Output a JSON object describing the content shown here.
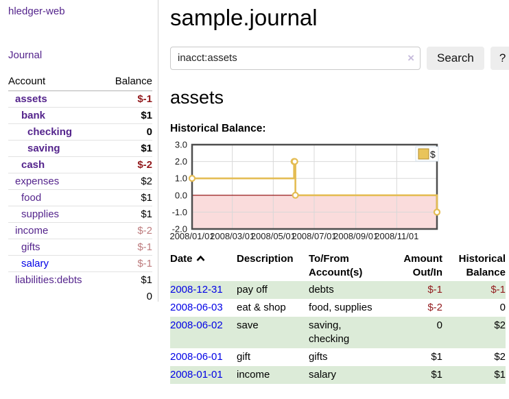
{
  "app": {
    "title": "hledger-web"
  },
  "sidebar": {
    "journal_label": "Journal",
    "accounts_table": {
      "account_header": "Account",
      "balance_header": "Balance",
      "rows": [
        {
          "name": "assets",
          "balance": "$-1",
          "indent": 0,
          "bold": true,
          "balance_class": "neg"
        },
        {
          "name": "bank",
          "balance": "$1",
          "indent": 1,
          "bold": true,
          "balance_class": ""
        },
        {
          "name": "checking",
          "balance": "0",
          "indent": 2,
          "bold": true,
          "balance_class": ""
        },
        {
          "name": "saving",
          "balance": "$1",
          "indent": 2,
          "bold": true,
          "balance_class": ""
        },
        {
          "name": "cash",
          "balance": "$-2",
          "indent": 1,
          "bold": true,
          "balance_class": "neg"
        },
        {
          "name": "expenses",
          "balance": "$2",
          "indent": 0,
          "bold": false,
          "balance_class": ""
        },
        {
          "name": "food",
          "balance": "$1",
          "indent": 1,
          "bold": false,
          "balance_class": ""
        },
        {
          "name": "supplies",
          "balance": "$1",
          "indent": 1,
          "bold": false,
          "balance_class": ""
        },
        {
          "name": "income",
          "balance": "$-2",
          "indent": 0,
          "bold": false,
          "balance_class": "neg-muted"
        },
        {
          "name": "gifts",
          "balance": "$-1",
          "indent": 1,
          "bold": false,
          "balance_class": "neg-muted"
        },
        {
          "name": "salary",
          "balance": "$-1",
          "indent": 1,
          "bold": false,
          "balance_class": "neg-muted",
          "blue": true
        },
        {
          "name": "liabilities:debts",
          "balance": "$1",
          "indent": 0,
          "bold": false,
          "balance_class": ""
        }
      ],
      "total": "0"
    }
  },
  "main": {
    "title": "sample.journal",
    "search": {
      "value": "inacct:assets",
      "clear_icon": "×",
      "button_label": "Search",
      "help_label": "?"
    },
    "section_title": "assets",
    "chart_label": "Historical Balance:"
  },
  "chart_data": {
    "type": "line",
    "step": true,
    "title": "Historical Balance",
    "series": [
      {
        "name": "$",
        "points": [
          [
            "2008-01-01",
            1
          ],
          [
            "2008-06-01",
            2
          ],
          [
            "2008-06-02",
            2
          ],
          [
            "2008-06-03",
            0
          ],
          [
            "2008-12-31",
            -1
          ]
        ]
      }
    ],
    "x_start": "2008-01-01",
    "x_end": "2008-12-31",
    "ylim": [
      -2,
      3
    ],
    "yticks": [
      3,
      2,
      1,
      0,
      -1,
      -2
    ],
    "ytick_labels": [
      "3.0",
      "2.0",
      "1.0",
      "0.0",
      "-1.0",
      "-2.0"
    ],
    "xticks": [
      {
        "date": "2008-01-01",
        "label": "2008/01/01"
      },
      {
        "date": "2008-03-01",
        "label": "2008/03/01"
      },
      {
        "date": "2008-05-01",
        "label": "2008/05/01"
      },
      {
        "date": "2008-07-01",
        "label": "2008/07/01"
      },
      {
        "date": "2008-09-01",
        "label": "2008/09/01"
      },
      {
        "date": "2008-11-01",
        "label": "2008/11/01"
      }
    ],
    "legend": {
      "position": "top-right",
      "items": [
        {
          "label": "$",
          "color": "#e9c45a"
        }
      ]
    },
    "colors": {
      "line": "#e4bc53",
      "point_fill": "#ffffff",
      "negative_region": "#fadcdc",
      "zero_line": "#8b0000",
      "grid": "#d8d8d8",
      "border": "#4d4d4d"
    }
  },
  "register": {
    "headers": {
      "date": "Date",
      "description": "Description",
      "accounts_line1": "To/From",
      "accounts_line2": "Account(s)",
      "amount_line1": "Amount",
      "amount_line2": "Out/In",
      "balance_line1": "Historical",
      "balance_line2": "Balance"
    },
    "rows": [
      {
        "date": "2008-12-31",
        "description": "pay off",
        "accounts": "debts",
        "amount": "$-1",
        "balance": "$-1",
        "amount_neg": true,
        "balance_neg": true
      },
      {
        "date": "2008-06-03",
        "description": "eat & shop",
        "accounts": "food, supplies",
        "amount": "$-2",
        "balance": "0",
        "amount_neg": true,
        "balance_neg": false
      },
      {
        "date": "2008-06-02",
        "description": "save",
        "accounts": "saving, checking",
        "amount": "0",
        "balance": "$2",
        "amount_neg": false,
        "balance_neg": false
      },
      {
        "date": "2008-06-01",
        "description": "gift",
        "accounts": "gifts",
        "amount": "$1",
        "balance": "$2",
        "amount_neg": false,
        "balance_neg": false
      },
      {
        "date": "2008-01-01",
        "description": "income",
        "accounts": "salary",
        "amount": "$1",
        "balance": "$1",
        "amount_neg": false,
        "balance_neg": false
      }
    ]
  }
}
